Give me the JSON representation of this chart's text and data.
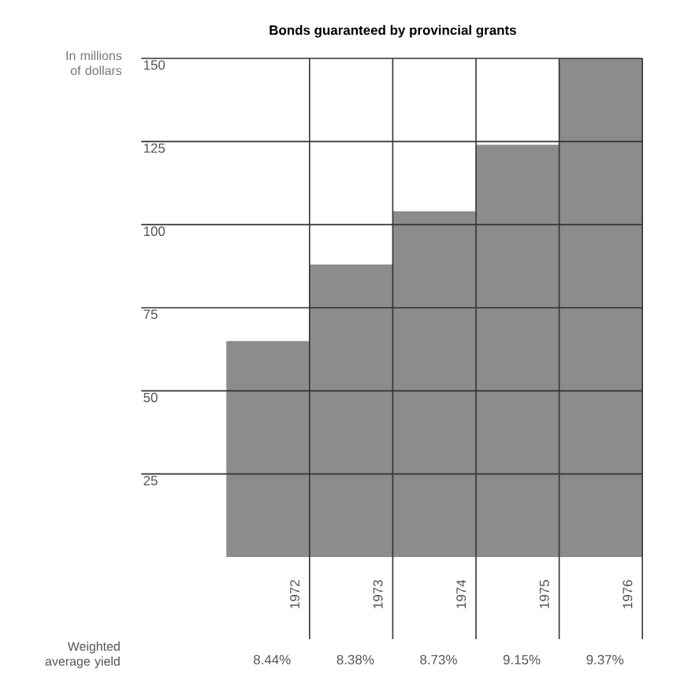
{
  "chart_data": {
    "type": "bar",
    "title": "Bonds guaranteed by provincial grants",
    "ylabel": "In millions of dollars",
    "categories": [
      "1972",
      "1973",
      "1974",
      "1975",
      "1976"
    ],
    "values": [
      65,
      88,
      104,
      124,
      150
    ],
    "color": "#8c8c8c",
    "ylim": [
      0,
      150
    ],
    "yticks": [
      25,
      50,
      75,
      100,
      125,
      150
    ],
    "grid": true,
    "annotations": [
      "Weighted average yield",
      "8.44%",
      "8.38%",
      "8.73%",
      "9.15%",
      "9.37%"
    ]
  }
}
